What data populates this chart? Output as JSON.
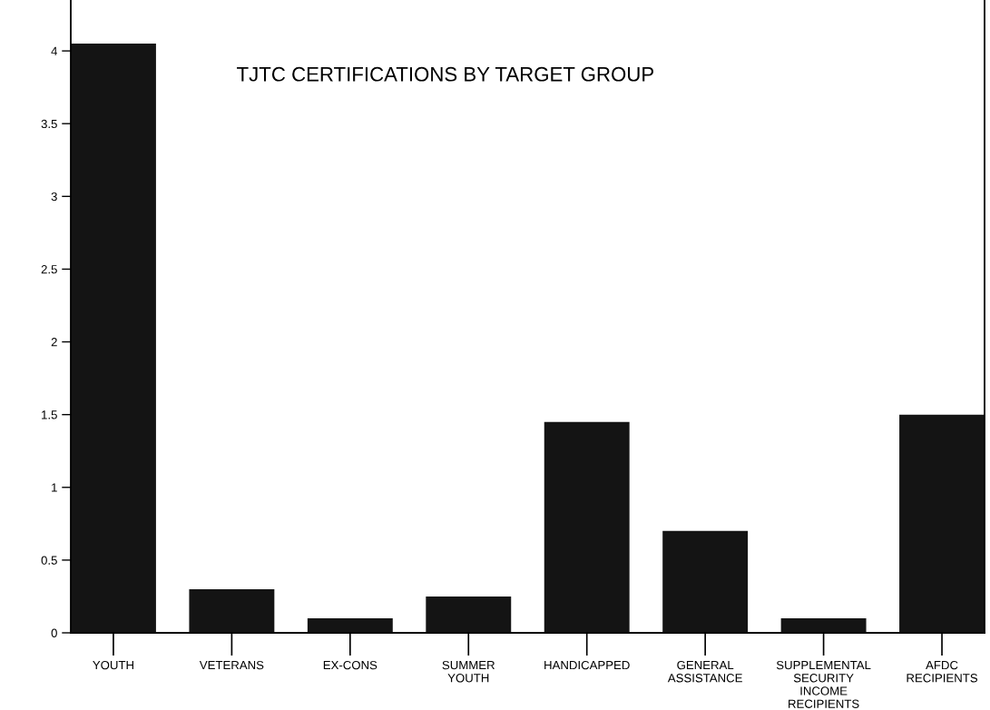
{
  "chart_data": {
    "type": "bar",
    "title": "TJTC CERTIFICATIONS BY TARGET GROUP",
    "categories": [
      "YOUTH",
      "VETERANS",
      "EX-CONS",
      "SUMMER\nYOUTH",
      "HANDICAPPED",
      "GENERAL\nASSISTANCE",
      "SUPPLEMENTAL\nSECURITY\nINCOME\nRECIPIENTS",
      "AFDC\nRECIPIENTS"
    ],
    "values": [
      4.05,
      0.3,
      0.1,
      0.25,
      1.45,
      0.7,
      0.1,
      1.5
    ],
    "color": "#141414",
    "ylim": [
      0,
      4.35
    ],
    "yticks": [
      0,
      0.5,
      1,
      1.5,
      2,
      2.5,
      3,
      3.5,
      4
    ],
    "grid": false,
    "legend": false
  }
}
